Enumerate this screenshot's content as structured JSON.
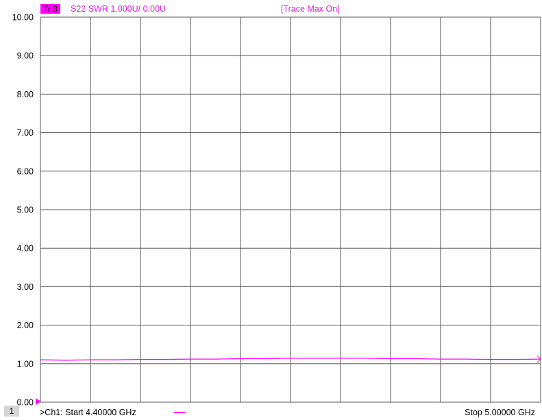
{
  "header": {
    "trace_tag": "Tr 3",
    "trace_desc": "S22 SWR 1.000U/  0.00U",
    "trace_max": "[Trace Max On]"
  },
  "footer": {
    "channel_number": "1",
    "start_label": ">Ch1:  Start  4.40000 GHz",
    "stop_label": "Stop  5.00000 GHz"
  },
  "colors": {
    "trace": "#ff00ff",
    "grid": "#555555",
    "reference_line": "#808080"
  },
  "chart_data": {
    "type": "line",
    "title": "",
    "xlabel": "",
    "ylabel": "",
    "xlim": [
      4.4,
      5.0
    ],
    "ylim": [
      0,
      10
    ],
    "x_unit": "GHz",
    "x_divisions": 10,
    "yticks": [
      "0.00",
      "1.00",
      "2.00",
      "3.00",
      "4.00",
      "5.00",
      "6.00",
      "7.00",
      "8.00",
      "9.00",
      "10.00"
    ],
    "reference_value": 1.0,
    "grid": true,
    "series": [
      {
        "x": [
          4.4,
          4.43,
          4.46,
          4.49,
          4.52,
          4.55,
          4.58,
          4.61,
          4.64,
          4.67,
          4.7,
          4.73,
          4.76,
          4.79,
          4.82,
          4.85,
          4.88,
          4.91,
          4.94,
          4.97,
          5.0
        ],
        "values": [
          1.1,
          1.09,
          1.1,
          1.1,
          1.11,
          1.11,
          1.12,
          1.12,
          1.13,
          1.13,
          1.14,
          1.14,
          1.14,
          1.14,
          1.13,
          1.13,
          1.12,
          1.12,
          1.11,
          1.11,
          1.12
        ]
      }
    ]
  }
}
